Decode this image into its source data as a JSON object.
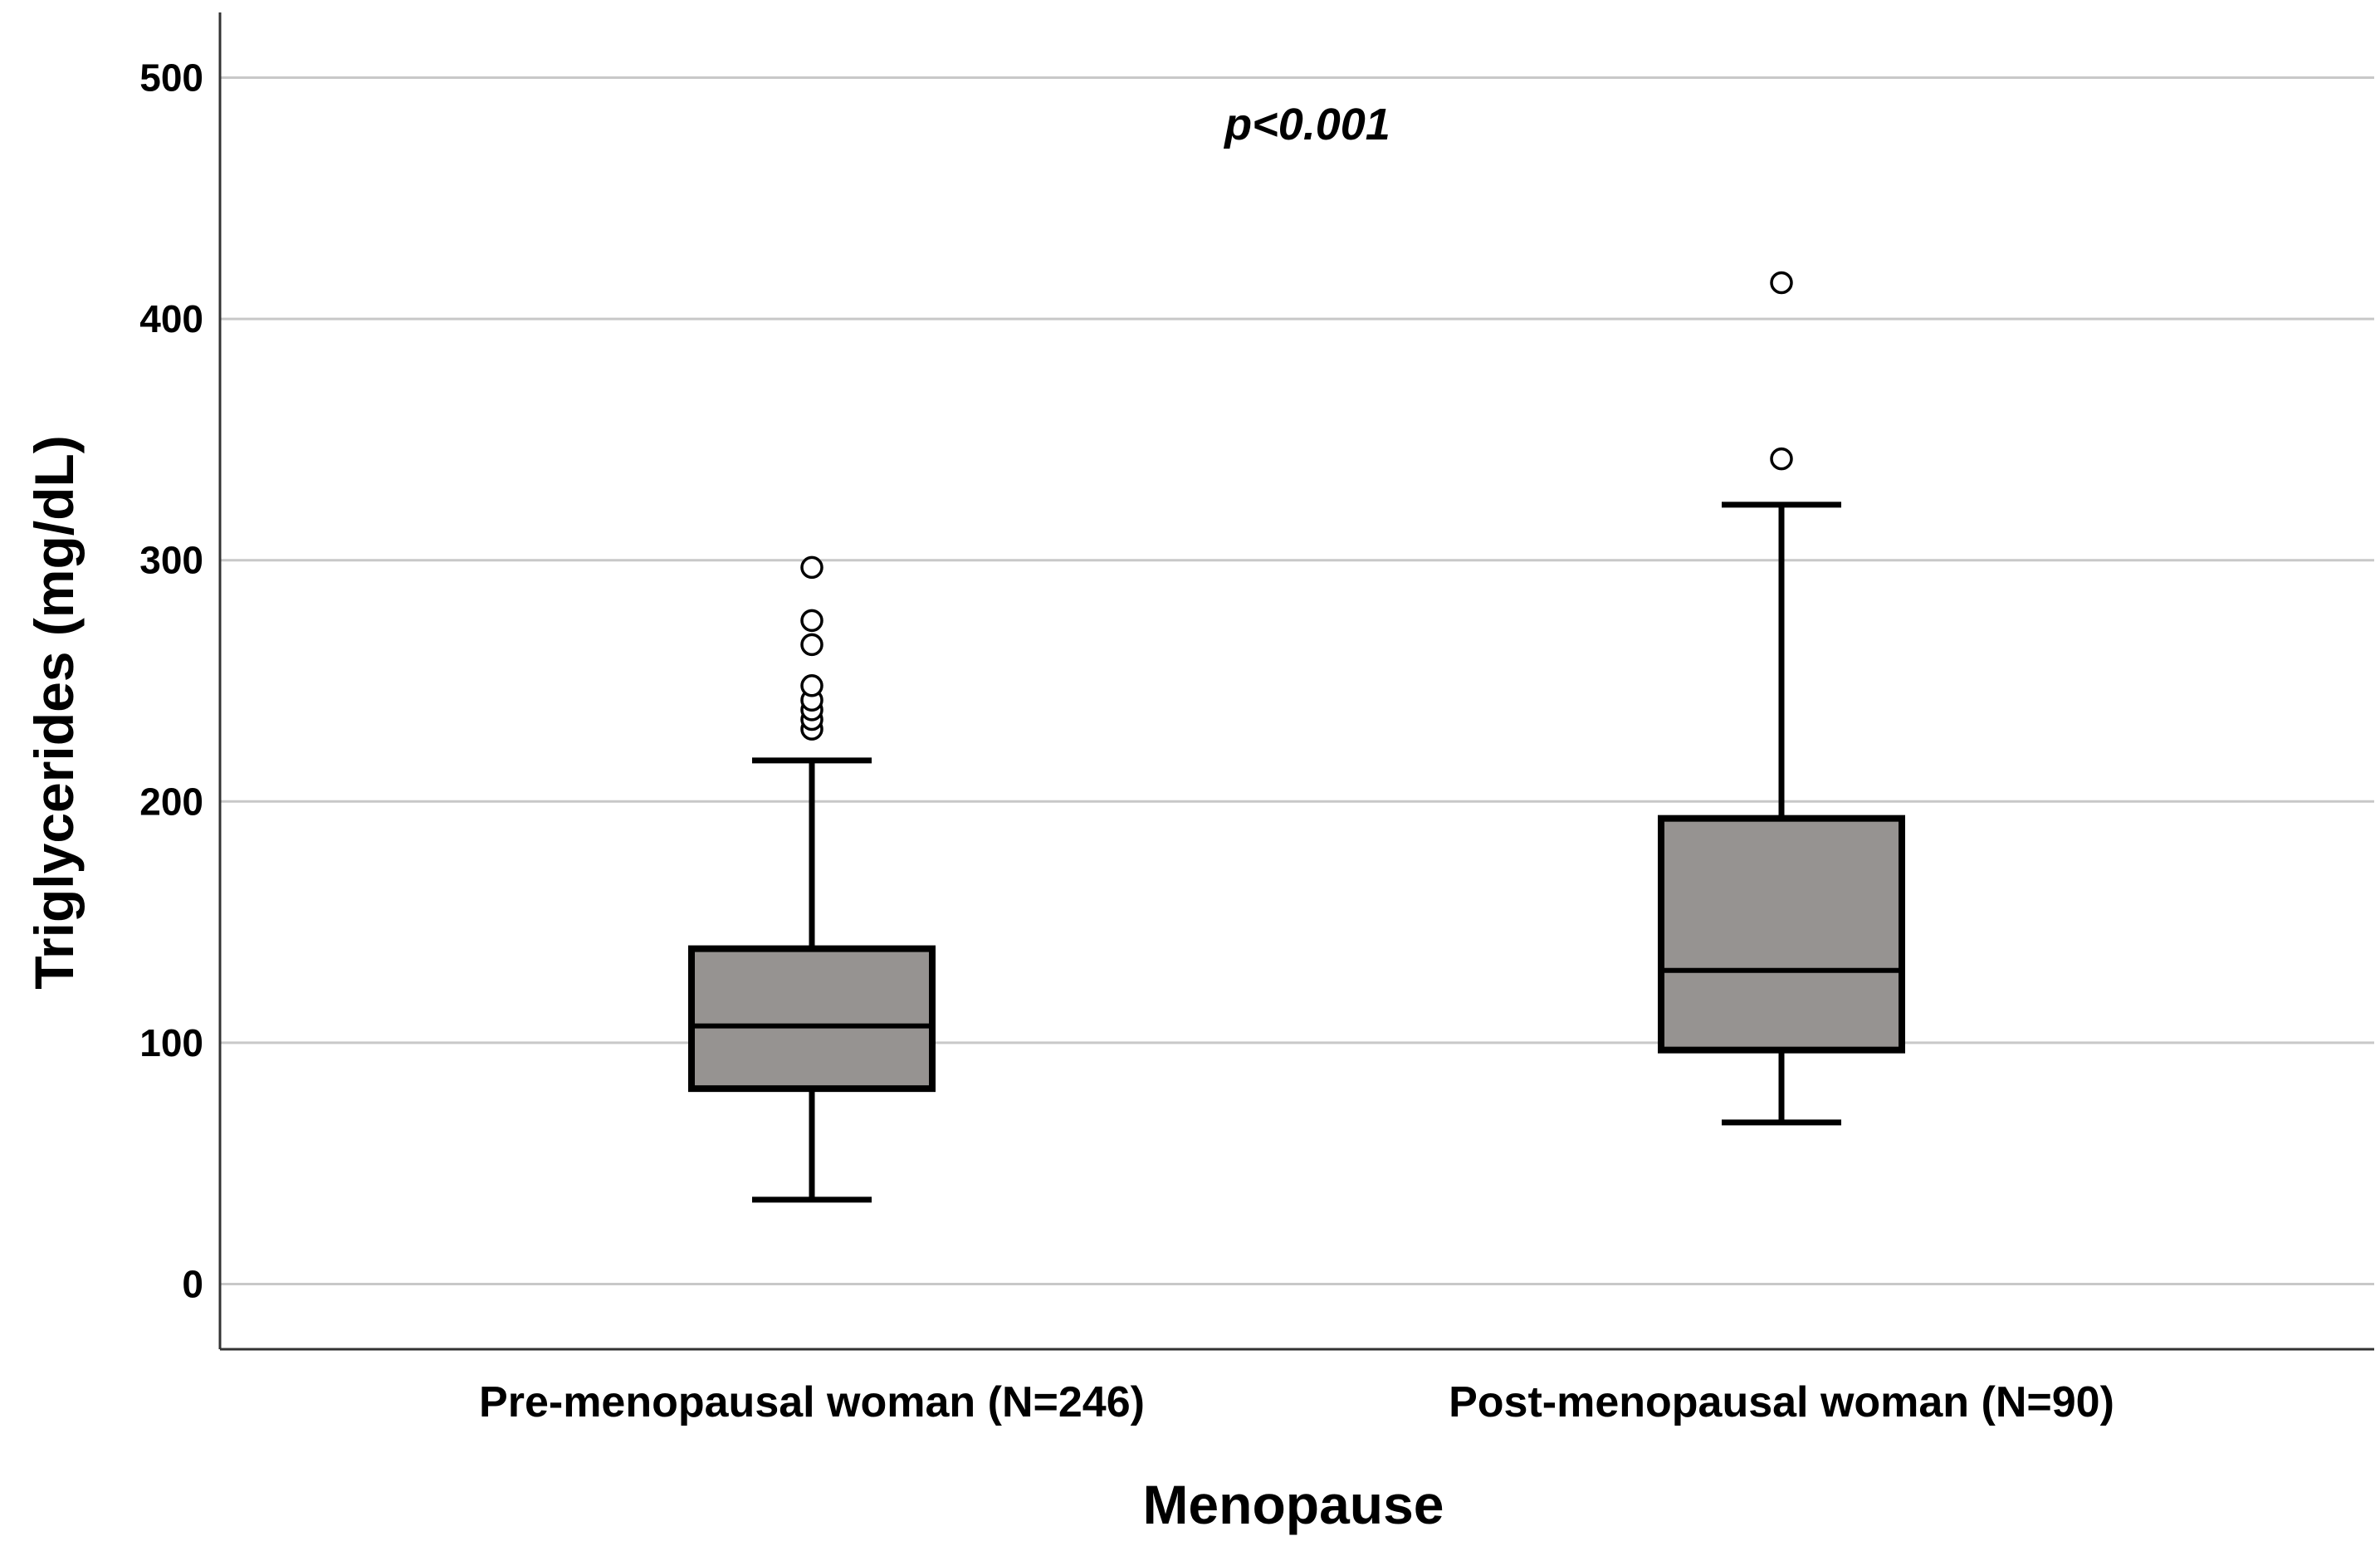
{
  "chart_data": {
    "type": "boxplot",
    "title": "",
    "xlabel": "Menopause",
    "ylabel": "Triglycerides (mg/dL)",
    "ylim": [
      -27,
      527
    ],
    "yticks": [
      0,
      100,
      200,
      300,
      400,
      500
    ],
    "grid": true,
    "annotation": "p<0.001",
    "colors": {
      "box_fill": "#969391",
      "box_stroke": "#000000",
      "grid": "#c8c8c8",
      "axis": "#333333"
    },
    "categories": [
      "Pre-menopausal woman (N=246)",
      "Post-menopausal woman (N=90)"
    ],
    "boxes": [
      {
        "label": "Pre-menopausal woman (N=246)",
        "whisker_low": 35,
        "q1": 81,
        "median": 107,
        "q3": 139,
        "whisker_high": 217,
        "outliers": [
          230,
          234,
          238,
          242,
          248,
          265,
          275,
          297
        ]
      },
      {
        "label": "Post-menopausal woman (N=90)",
        "whisker_low": 67,
        "q1": 97,
        "median": 130,
        "q3": 193,
        "whisker_high": 323,
        "outliers": [
          342,
          415
        ]
      }
    ]
  }
}
